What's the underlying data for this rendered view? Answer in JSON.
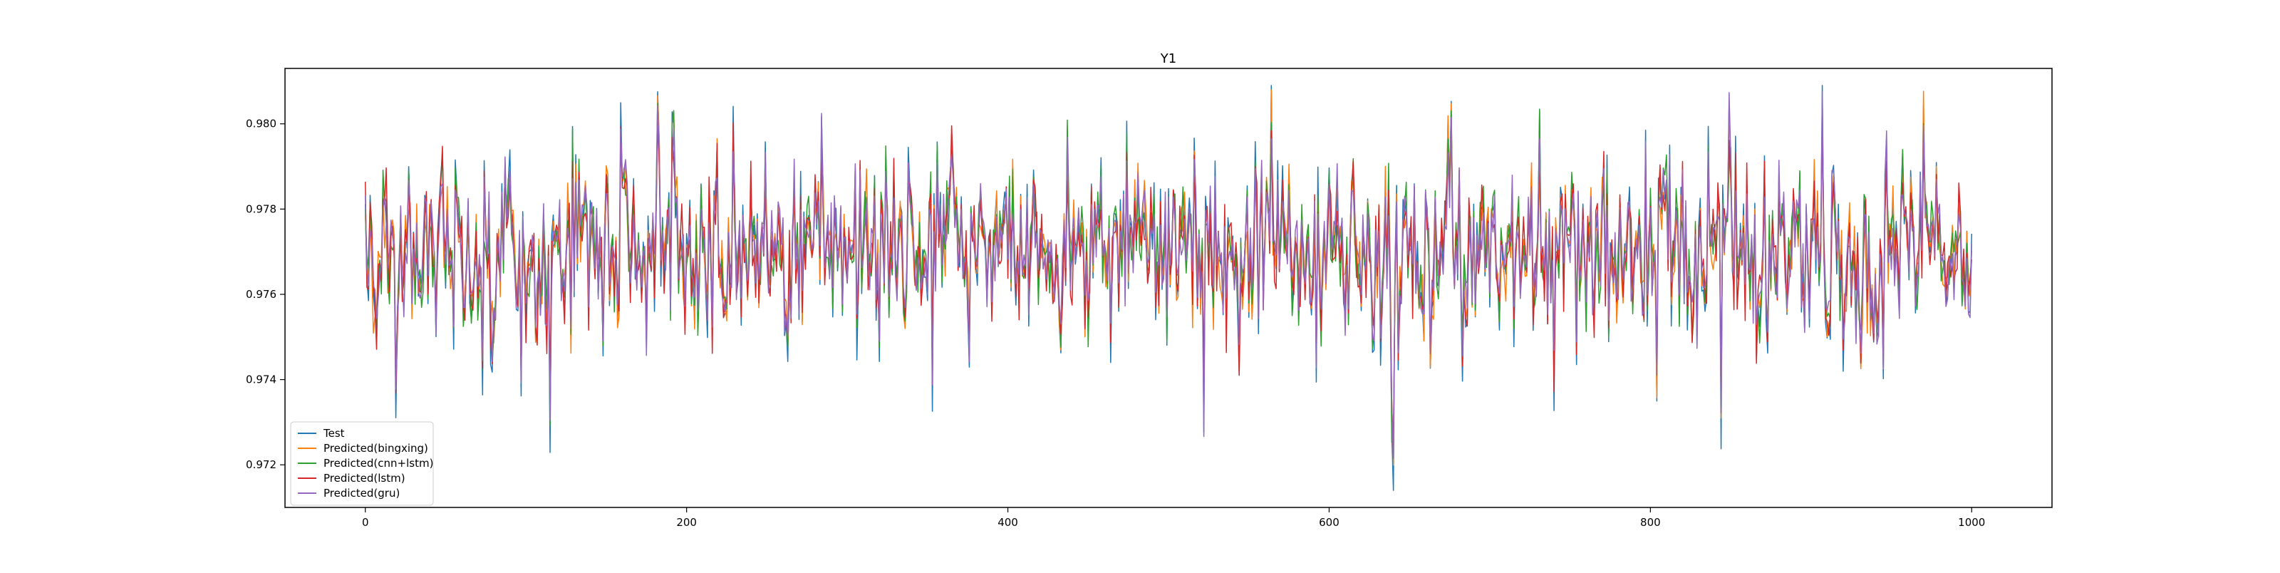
{
  "chart_data": {
    "type": "line",
    "title": "Y1",
    "xlabel": "",
    "ylabel": "",
    "xlim": [
      -50,
      1050
    ],
    "ylim": [
      0.971,
      0.9813
    ],
    "x_ticks": [
      0,
      200,
      400,
      600,
      800,
      1000
    ],
    "y_ticks": [
      0.972,
      0.974,
      0.976,
      0.978,
      0.98
    ],
    "x_tick_labels": [
      "0",
      "200",
      "400",
      "600",
      "800",
      "1000"
    ],
    "y_tick_labels": [
      "0.972",
      "0.974",
      "0.976",
      "0.978",
      "0.980"
    ],
    "grid": false,
    "legend": "lower-left",
    "n_points": 1001,
    "value_range": [
      0.9714,
      0.9809
    ],
    "series": [
      {
        "name": "Test",
        "color": "#1f77b4"
      },
      {
        "name": "Predicted(bingxing)",
        "color": "#ff7f0e"
      },
      {
        "name": "Predicted(cnn+lstm)",
        "color": "#2ca02c"
      },
      {
        "name": "Predicted(lstm)",
        "color": "#d62728"
      },
      {
        "name": "Predicted(gru)",
        "color": "#9467bd"
      }
    ]
  }
}
